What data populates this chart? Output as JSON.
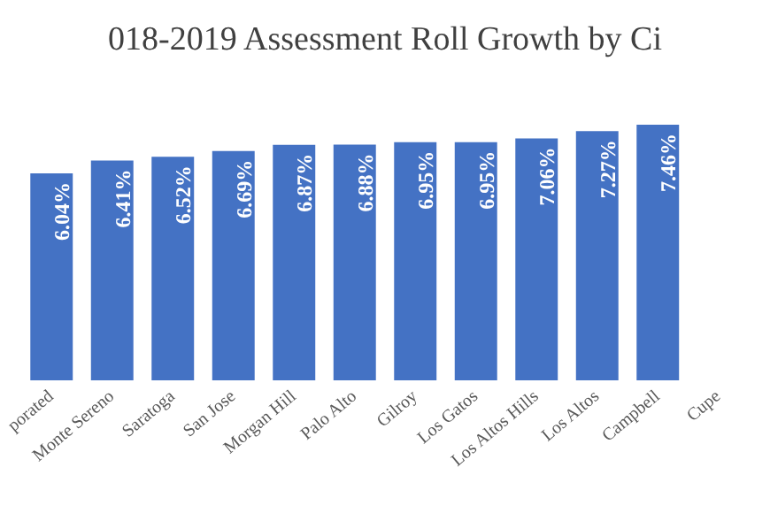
{
  "chart_data": {
    "type": "bar",
    "title": "018-2019 Assessment Roll Growth by Ci",
    "categories": [
      "porated",
      "Monte Sereno",
      "Saratoga",
      "San Jose",
      "Morgan Hill",
      "Palo Alto",
      "Gilroy",
      "Los Gatos",
      "Los Altos Hills",
      "Los Altos",
      "Campbell",
      "Cupe"
    ],
    "values": [
      6.04,
      6.41,
      6.52,
      6.69,
      6.87,
      6.88,
      6.95,
      6.95,
      7.06,
      7.27,
      7.46,
      null
    ],
    "value_labels": [
      "6.04%",
      "6.41%",
      "6.52%",
      "6.69%",
      "6.87%",
      "6.88%",
      "6.95%",
      "6.95%",
      "7.06%",
      "7.27%",
      "7.46%",
      null
    ],
    "color": "#4472c4"
  }
}
